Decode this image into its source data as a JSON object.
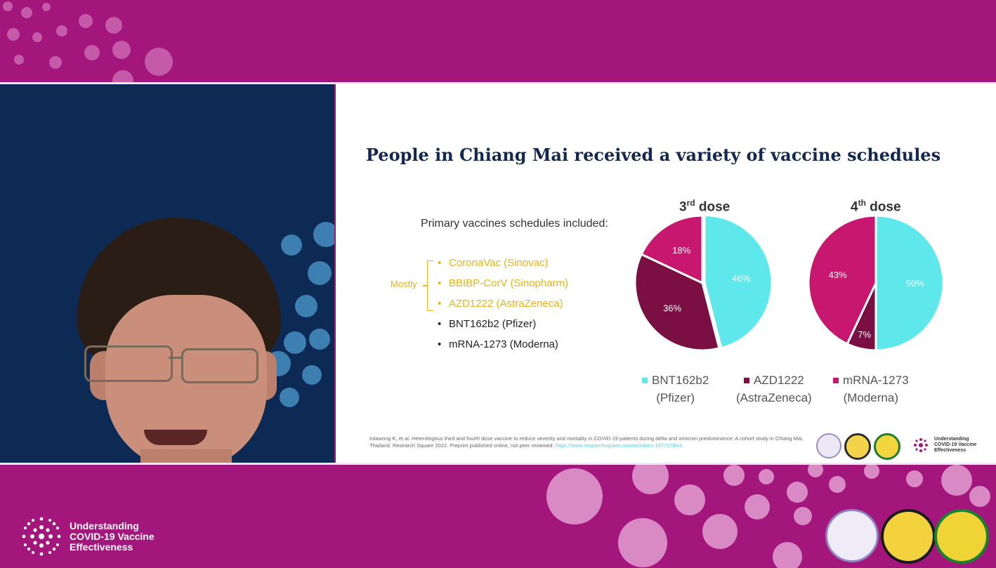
{
  "slide": {
    "title": "People in Chiang Mai received a variety of vaccine schedules",
    "primary_label": "Primary vaccines schedules included:",
    "mostly_label": "Mostly",
    "vaccines": [
      {
        "bullet": "•",
        "text": "CoronaVac (Sinovac)",
        "highlight": true
      },
      {
        "bullet": "•",
        "text": "BBIBP-CorV (Sinopharm)",
        "highlight": true
      },
      {
        "bullet": "•",
        "text": "AZD1222 (AstraZeneca)",
        "highlight": true
      },
      {
        "bullet": "•",
        "text": "BNT162b2 (Pfizer)",
        "highlight": false
      },
      {
        "bullet": "•",
        "text": "mRNA-1273 (Moderna)",
        "highlight": false
      }
    ],
    "citation": "Intawong K, et al. Heterologous third and fourth dose vaccine to reduce severity and mortality in COVID-19 patients during delta and omicron predominance: A cohort study in Chiang Mai, Thailand. Research Square 2022. Preprint published online, not peer reviewed.",
    "citation_url": "https://www.researchsquare.com/article/rs-1677278/v1",
    "small_brand": [
      "Understanding",
      "COVID-19 Vaccine",
      "Effectiveness"
    ]
  },
  "colors": {
    "magenta_band": "#a3177c",
    "title_navy": "#14284f",
    "gold": "#e2b51a",
    "pfizer": "#5fe8ec",
    "astrazeneca": "#7a0f44",
    "moderna": "#c8176e"
  },
  "legend": [
    {
      "line1": "BNT162b2",
      "line2": "(Pfizer)",
      "color": "#5fe8ec"
    },
    {
      "line1": "AZD1222",
      "line2": "(AstraZeneca)",
      "color": "#7a0f44"
    },
    {
      "line1": "mRNA-1273",
      "line2": "(Moderna)",
      "color": "#c8176e"
    }
  ],
  "chart_data": [
    {
      "type": "pie",
      "title_main": "3",
      "title_sup": "rd",
      "title_rest": " dose",
      "categories": [
        "BNT162b2 (Pfizer)",
        "AZD1222 (AstraZeneca)",
        "mRNA-1273 (Moderna)"
      ],
      "values": [
        46,
        36,
        18
      ],
      "labels": [
        "46%",
        "36%",
        "18%"
      ],
      "colors": [
        "#5fe8ec",
        "#7a0f44",
        "#c8176e"
      ],
      "exploded": true
    },
    {
      "type": "pie",
      "title_main": "4",
      "title_sup": "th",
      "title_rest": " dose",
      "categories": [
        "BNT162b2 (Pfizer)",
        "AZD1222 (AstraZeneca)",
        "mRNA-1273 (Moderna)"
      ],
      "values": [
        50,
        7,
        43
      ],
      "labels": [
        "50%",
        "7%",
        "43%"
      ],
      "colors": [
        "#5fe8ec",
        "#7a0f44",
        "#c8176e"
      ],
      "exploded": false
    }
  ],
  "footer": {
    "brand_lines": [
      "Understanding",
      "COVID-19 Vaccine",
      "Effectiveness"
    ]
  }
}
